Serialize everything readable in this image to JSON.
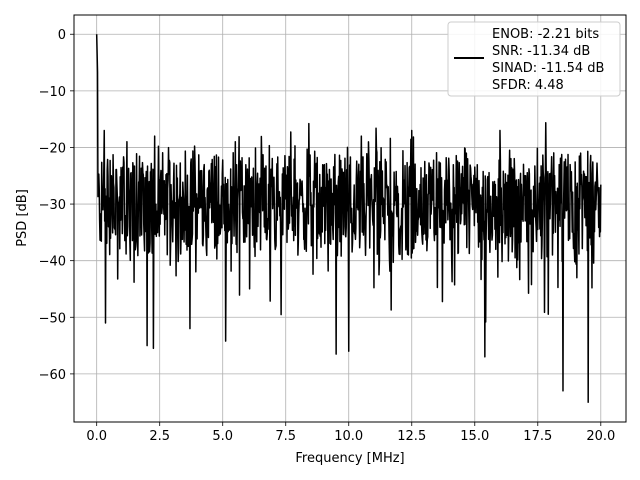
{
  "chart_data": {
    "type": "line",
    "title": "",
    "xlabel": "Frequency [MHz]",
    "ylabel": "PSD [dB]",
    "xlim": [
      -0.9,
      21.0
    ],
    "ylim": [
      -68.5,
      3.4
    ],
    "xticks": [
      0.0,
      2.5,
      5.0,
      7.5,
      10.0,
      12.5,
      15.0,
      17.5,
      20.0
    ],
    "xtick_labels": [
      "0.0",
      "2.5",
      "5.0",
      "7.5",
      "10.0",
      "12.5",
      "15.0",
      "17.5",
      "20.0"
    ],
    "yticks": [
      0,
      -10,
      -20,
      -30,
      -40,
      -50,
      -60
    ],
    "ytick_labels": [
      "0",
      "−10",
      "−20",
      "−30",
      "−40",
      "−50",
      "−60"
    ],
    "grid": true,
    "legend_position": "upper right",
    "line_color": "#000000",
    "legend": [
      "ENOB: -2.21 bits",
      "SNR: -11.34 dB",
      "SINAD: -11.54 dB",
      "SFDR: 4.48"
    ],
    "series": [
      {
        "x_start": 0.0,
        "x_end": 20.0,
        "noise_floor_db": -30,
        "peak": {
          "x": 0.0,
          "y": 0.0
        },
        "dips": [
          {
            "x": 0.35,
            "y": -51
          },
          {
            "x": 2.0,
            "y": -55
          },
          {
            "x": 2.25,
            "y": -55.5
          },
          {
            "x": 3.7,
            "y": -52
          },
          {
            "x": 9.5,
            "y": -56.5
          },
          {
            "x": 10.0,
            "y": -56
          },
          {
            "x": 15.4,
            "y": -57
          },
          {
            "x": 18.5,
            "y": -63
          },
          {
            "x": 19.5,
            "y": -65
          }
        ],
        "peaks": [
          {
            "x": 0.3,
            "y": -17
          },
          {
            "x": 1.2,
            "y": -19
          },
          {
            "x": 2.3,
            "y": -18
          },
          {
            "x": 5.5,
            "y": -19
          },
          {
            "x": 10.5,
            "y": -18
          },
          {
            "x": 12.5,
            "y": -17
          },
          {
            "x": 16.0,
            "y": -17
          },
          {
            "x": 19.2,
            "y": -21
          }
        ]
      }
    ]
  }
}
